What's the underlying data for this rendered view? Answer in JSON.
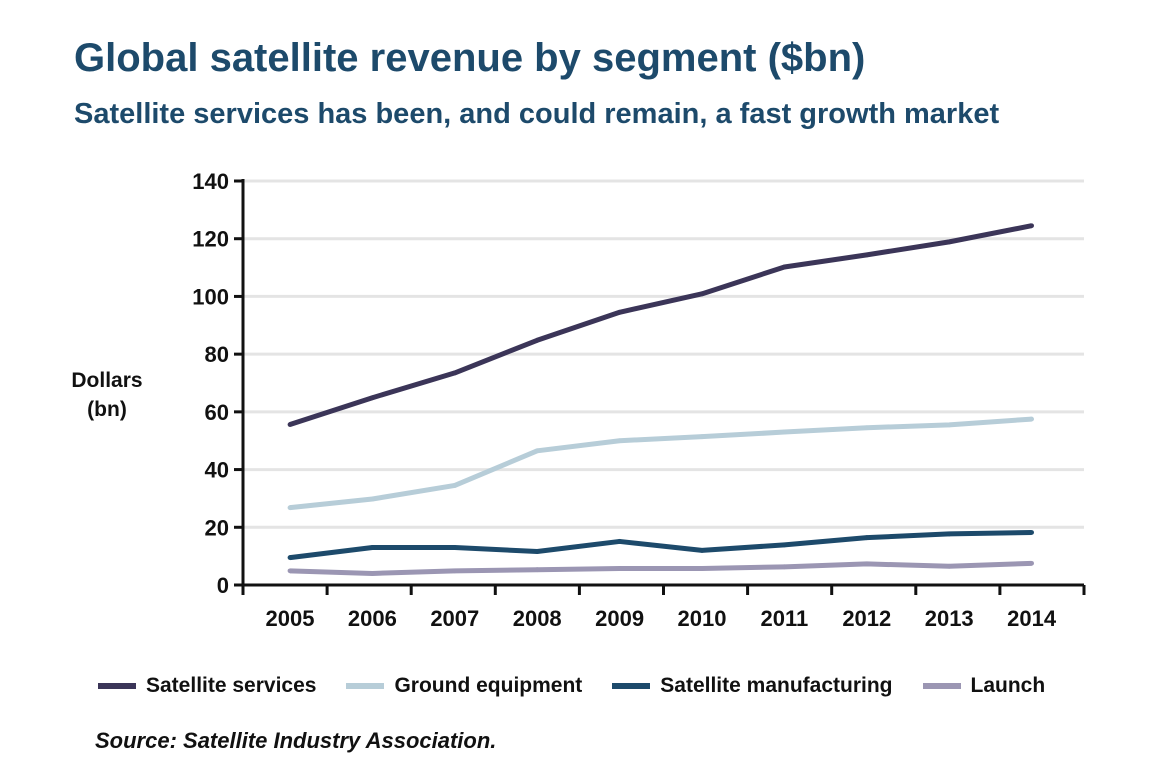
{
  "chart_data": {
    "type": "line",
    "title": "Global satellite revenue by segment ($bn)",
    "subtitle": "Satellite services has been, and could remain, a fast growth market",
    "ylabel_line1": "Dollars",
    "ylabel_line2": "(bn)",
    "xlabel": "",
    "categories": [
      "2005",
      "2006",
      "2007",
      "2008",
      "2009",
      "2010",
      "2011",
      "2012",
      "2013",
      "2014"
    ],
    "ylim": [
      0,
      140
    ],
    "yticks": [
      0,
      20,
      40,
      60,
      80,
      100,
      120,
      140
    ],
    "grid": true,
    "series": [
      {
        "name": "Satellite services",
        "color": "#3b3558",
        "values": [
          55.6,
          64.9,
          73.5,
          84.8,
          94.5,
          100.9,
          110.2,
          114.4,
          118.9,
          124.5
        ]
      },
      {
        "name": "Ground equipment",
        "color": "#b7cdd8",
        "values": [
          26.8,
          29.8,
          34.5,
          46.5,
          50.0,
          51.4,
          53.0,
          54.5,
          55.5,
          57.5
        ]
      },
      {
        "name": "Satellite manufacturing",
        "color": "#1d4a6b",
        "values": [
          9.5,
          13.0,
          13.0,
          11.6,
          15.1,
          12.0,
          13.9,
          16.4,
          17.7,
          18.2
        ]
      },
      {
        "name": "Launch",
        "color": "#9b96b3",
        "values": [
          4.9,
          4.0,
          4.9,
          5.3,
          5.7,
          5.7,
          6.3,
          7.3,
          6.5,
          7.5
        ]
      }
    ],
    "legend_position": "bottom",
    "source": "Source: Satellite Industry Association."
  }
}
